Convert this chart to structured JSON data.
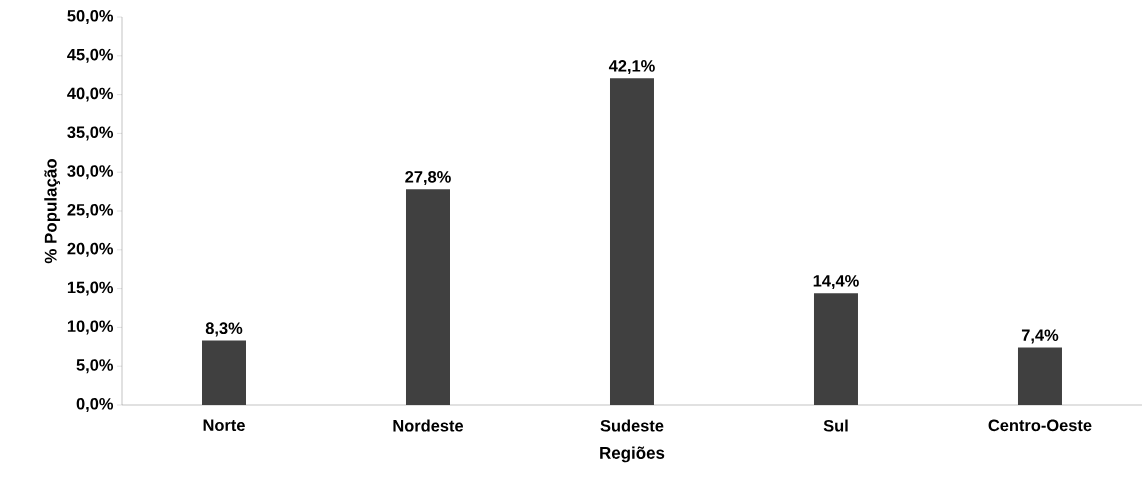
{
  "chart_data": {
    "type": "bar",
    "xlabel": "Regiões",
    "ylabel": "% População",
    "categories": [
      "Norte",
      "Nordeste",
      "Sudeste",
      "Sul",
      "Centro-Oeste"
    ],
    "values": [
      8.3,
      27.8,
      42.1,
      14.4,
      7.4
    ],
    "value_labels": [
      "8,3%",
      "27,8%",
      "42,1%",
      "14,4%",
      "7,4%"
    ],
    "color": "#404040",
    "ylim": [
      0,
      50
    ],
    "yticks": [
      {
        "value": 0,
        "label": "0,0%"
      },
      {
        "value": 5,
        "label": "5,0%"
      },
      {
        "value": 10,
        "label": "10,0%"
      },
      {
        "value": 15,
        "label": "15,0%"
      },
      {
        "value": 20,
        "label": "20,0%"
      },
      {
        "value": 25,
        "label": "25,0%"
      },
      {
        "value": 30,
        "label": "30,0%"
      },
      {
        "value": 35,
        "label": "35,0%"
      },
      {
        "value": 40,
        "label": "40,0%"
      },
      {
        "value": 45,
        "label": "45,0%"
      },
      {
        "value": 50,
        "label": "50,0%"
      }
    ],
    "grid": false
  }
}
